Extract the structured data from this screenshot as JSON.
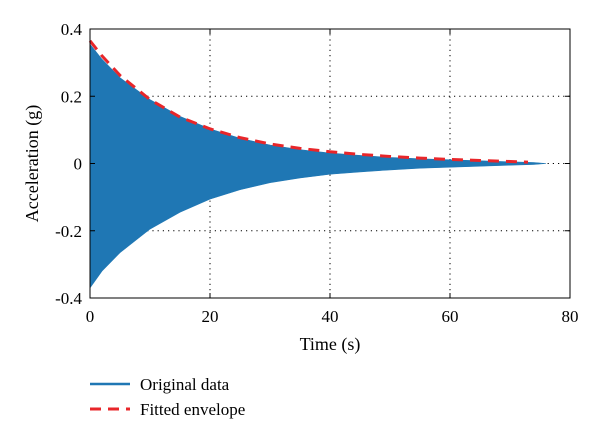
{
  "chart_data": {
    "type": "line",
    "xlabel": "Time (s)",
    "ylabel": "Acceleration (g)",
    "xlim": [
      0,
      80
    ],
    "ylim": [
      -0.4,
      0.4
    ],
    "xticks": [
      0,
      20,
      40,
      60,
      80
    ],
    "xtick_labels": [
      "0",
      "20",
      "40",
      "60",
      "80"
    ],
    "yticks": [
      -0.4,
      -0.2,
      0,
      0.2,
      0.4
    ],
    "ytick_labels": [
      "-0.4",
      "-0.2",
      "0",
      "0.2",
      "0.4"
    ],
    "grid": true,
    "legend_position": "bottom-left-outside",
    "series": [
      {
        "name": "Original data",
        "style": "filled-oscillation",
        "color": "#1f77b4",
        "x": [
          0,
          2,
          5,
          10,
          15,
          20,
          25,
          30,
          35,
          40,
          45,
          50,
          55,
          60,
          65,
          70,
          74,
          76
        ],
        "upper": [
          0.355,
          0.31,
          0.255,
          0.19,
          0.14,
          0.103,
          0.075,
          0.055,
          0.041,
          0.031,
          0.024,
          0.018,
          0.014,
          0.011,
          0.008,
          0.005,
          0.003,
          0.0
        ],
        "lower": [
          -0.37,
          -0.32,
          -0.265,
          -0.195,
          -0.145,
          -0.106,
          -0.078,
          -0.057,
          -0.043,
          -0.032,
          -0.025,
          -0.019,
          -0.014,
          -0.011,
          -0.008,
          -0.005,
          -0.003,
          0.0
        ]
      },
      {
        "name": "Fitted envelope",
        "style": "dashed",
        "color": "#e8262a",
        "x": [
          0,
          2,
          5,
          10,
          15,
          20,
          25,
          30,
          35,
          40,
          45,
          50,
          55,
          60,
          65,
          70,
          73
        ],
        "y": [
          0.365,
          0.32,
          0.262,
          0.19,
          0.138,
          0.103,
          0.077,
          0.058,
          0.045,
          0.035,
          0.027,
          0.021,
          0.016,
          0.012,
          0.009,
          0.006,
          0.004
        ]
      }
    ]
  }
}
